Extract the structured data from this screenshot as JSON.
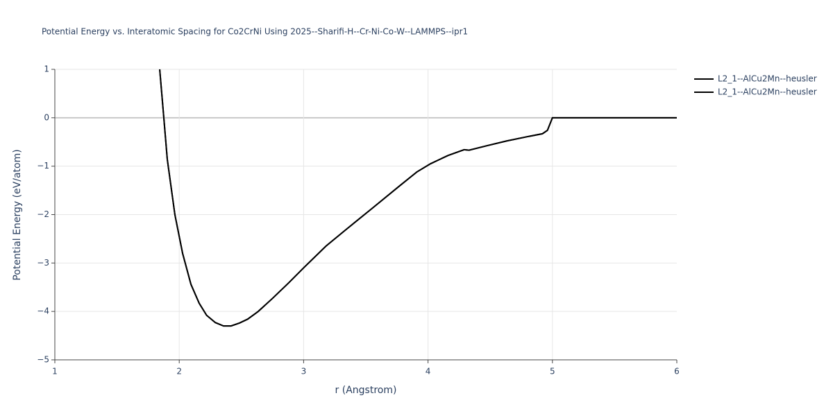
{
  "chart_data": {
    "type": "line",
    "title": "Potential Energy vs. Interatomic Spacing for Co2CrNi Using 2025--Sharifi-H--Cr-Ni-Co-W--LAMMPS--ipr1",
    "x_label": "r (Angstrom)",
    "y_label": "Potential Energy (eV/atom)",
    "xlim": [
      1,
      6
    ],
    "ylim": [
      -5,
      1
    ],
    "xticks": [
      1,
      2,
      3,
      4,
      5,
      6
    ],
    "yticks": [
      {
        "value": -5,
        "label": "−5"
      },
      {
        "value": -4,
        "label": "−4"
      },
      {
        "value": -3,
        "label": "−3"
      },
      {
        "value": -2,
        "label": "−2"
      },
      {
        "value": -1,
        "label": "−1"
      },
      0,
      1
    ],
    "grid": true,
    "legend": "right",
    "series": [
      {
        "name": "L2_1--AlCu2Mn--heusler",
        "color": "#000000",
        "x": [
          1.843,
          1.876,
          1.904,
          1.965,
          2.027,
          2.094,
          2.16,
          2.22,
          2.29,
          2.356,
          2.417,
          2.484,
          2.55,
          2.635,
          2.75,
          2.88,
          3.0,
          3.18,
          3.35,
          3.556,
          3.77,
          3.91,
          4.02,
          4.16,
          4.29,
          4.33,
          4.47,
          4.63,
          4.8,
          4.92,
          4.96,
          5.0,
          6.0
        ],
        "values": [
          1,
          0,
          -0.86,
          -2.0,
          -2.8,
          -3.44,
          -3.83,
          -4.08,
          -4.23,
          -4.3,
          -4.3,
          -4.24,
          -4.16,
          -4.0,
          -3.73,
          -3.41,
          -3.1,
          -2.65,
          -2.29,
          -1.86,
          -1.41,
          -1.12,
          -0.95,
          -0.78,
          -0.66,
          -0.67,
          -0.58,
          -0.48,
          -0.39,
          -0.33,
          -0.26,
          0,
          0
        ]
      },
      {
        "name": "L2_1--AlCu2Mn--heusler",
        "color": "#000000",
        "x": [
          1.843,
          1.876,
          1.904,
          1.965,
          2.027,
          2.094,
          2.16,
          2.22,
          2.29,
          2.356,
          2.417,
          2.484,
          2.55,
          2.635,
          2.75,
          2.88,
          3.0,
          3.18,
          3.35,
          3.556,
          3.77,
          3.91,
          4.02,
          4.16,
          4.29,
          4.33,
          4.47,
          4.63,
          4.8,
          4.92,
          4.96,
          5.0,
          6.0
        ],
        "values": [
          1,
          0,
          -0.86,
          -2.0,
          -2.8,
          -3.44,
          -3.83,
          -4.08,
          -4.23,
          -4.3,
          -4.3,
          -4.24,
          -4.16,
          -4.0,
          -3.73,
          -3.41,
          -3.1,
          -2.65,
          -2.29,
          -1.86,
          -1.41,
          -1.12,
          -0.95,
          -0.78,
          -0.66,
          -0.67,
          -0.58,
          -0.48,
          -0.39,
          -0.33,
          -0.26,
          0,
          0
        ]
      }
    ]
  }
}
